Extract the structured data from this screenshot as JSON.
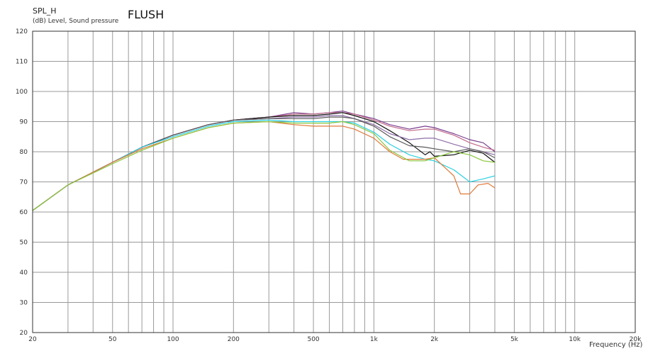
{
  "chart_data": {
    "type": "line",
    "title": "FLUSH",
    "ylabel": "SPL_H",
    "ylabel_unit": "(dB)  Level, Sound pressure",
    "xlabel": "Frequency  (Hz)",
    "xscale": "log",
    "xlim": [
      20,
      20000
    ],
    "ylim": [
      20,
      120
    ],
    "grid": true,
    "yticks": [
      20,
      30,
      40,
      50,
      60,
      70,
      80,
      90,
      100,
      110,
      120
    ],
    "xticks": [
      {
        "value": 20,
        "label": "20"
      },
      {
        "value": 50,
        "label": "50"
      },
      {
        "value": 100,
        "label": "100"
      },
      {
        "value": 200,
        "label": "200"
      },
      {
        "value": 500,
        "label": "500"
      },
      {
        "value": 1000,
        "label": "1k"
      },
      {
        "value": 2000,
        "label": "2k"
      },
      {
        "value": 5000,
        "label": "5k"
      },
      {
        "value": 10000,
        "label": "10k"
      },
      {
        "value": 20000,
        "label": "20k"
      }
    ],
    "series": [
      {
        "color": "#7a3f8f",
        "x": [
          20,
          30,
          50,
          70,
          100,
          150,
          200,
          300,
          400,
          500,
          600,
          700,
          800,
          1000,
          1200,
          1500,
          1800,
          2000,
          2500,
          3000,
          3500,
          4000
        ],
        "values": [
          60.5,
          69,
          76.5,
          81.5,
          85.5,
          89,
          90.5,
          91.5,
          93,
          92.5,
          93,
          93.5,
          92.5,
          91,
          89,
          87.5,
          88.5,
          88,
          86,
          84,
          83,
          80
        ]
      },
      {
        "color": "#c06a8a",
        "x": [
          20,
          30,
          50,
          70,
          100,
          150,
          200,
          300,
          400,
          500,
          600,
          700,
          800,
          1000,
          1200,
          1500,
          1800,
          2000,
          2500,
          3000,
          3500,
          4000
        ],
        "values": [
          60.5,
          69,
          76.5,
          81.5,
          85.5,
          89,
          90.5,
          91.5,
          92.5,
          92.5,
          93,
          93,
          92.5,
          90.5,
          88.5,
          87,
          87.5,
          87.5,
          85.5,
          83,
          81.5,
          80.5
        ]
      },
      {
        "color": "#111111",
        "x": [
          20,
          30,
          50,
          70,
          100,
          150,
          200,
          300,
          400,
          500,
          600,
          700,
          800,
          1000,
          1200,
          1500,
          1800,
          1900,
          2000,
          2500,
          3000,
          3500,
          4000
        ],
        "values": [
          60.5,
          69,
          76.5,
          81.5,
          85.5,
          89,
          90.5,
          91.5,
          92,
          92,
          92.5,
          93,
          92,
          90,
          87,
          83,
          79,
          80,
          78.5,
          79,
          80.5,
          79.5,
          76.5
        ]
      },
      {
        "color": "#8e6fa8",
        "x": [
          20,
          30,
          50,
          70,
          100,
          150,
          200,
          300,
          400,
          500,
          600,
          700,
          800,
          1000,
          1200,
          1500,
          1800,
          2000,
          2500,
          3000,
          3500,
          4000
        ],
        "values": [
          60.5,
          69,
          76.5,
          81.5,
          85.5,
          89,
          90.5,
          91,
          91.5,
          91.5,
          92,
          92,
          91,
          89,
          86,
          84,
          84.5,
          84.5,
          82.5,
          81,
          80,
          79
        ]
      },
      {
        "color": "#5a5a5a",
        "x": [
          20,
          30,
          50,
          70,
          100,
          150,
          200,
          300,
          400,
          500,
          600,
          700,
          800,
          1000,
          1200,
          1500,
          1800,
          2000,
          2500,
          3000,
          3500,
          4000
        ],
        "values": [
          60.5,
          69,
          76.5,
          81.5,
          85.5,
          89,
          90.5,
          91,
          91,
          91,
          91.5,
          91.5,
          91,
          88.5,
          85,
          82,
          81.5,
          81,
          80,
          81,
          80,
          78
        ]
      },
      {
        "color": "#2ad0e0",
        "x": [
          20,
          30,
          50,
          70,
          100,
          150,
          200,
          300,
          400,
          500,
          600,
          700,
          800,
          1000,
          1200,
          1500,
          1800,
          2000,
          2500,
          3000,
          3500,
          4000
        ],
        "values": [
          60.5,
          69,
          76.5,
          81.5,
          85,
          88.5,
          90,
          90.5,
          90,
          90,
          90,
          90,
          89.5,
          86.5,
          82.5,
          79,
          77.5,
          77,
          74,
          70,
          71,
          72
        ]
      },
      {
        "color": "#e07a3a",
        "x": [
          20,
          30,
          50,
          70,
          100,
          150,
          200,
          300,
          400,
          500,
          600,
          700,
          800,
          1000,
          1200,
          1400,
          1800,
          2000,
          2500,
          2700,
          3000,
          3300,
          3700,
          4000
        ],
        "values": [
          60.5,
          69,
          76.5,
          81,
          84.5,
          88,
          89.5,
          90,
          89,
          88.5,
          88.5,
          88.5,
          87.5,
          84.5,
          80,
          77.5,
          77.5,
          78,
          72,
          66,
          66,
          69,
          69.5,
          68
        ]
      },
      {
        "color": "#8cc63e",
        "x": [
          20,
          30,
          50,
          70,
          100,
          150,
          200,
          300,
          400,
          500,
          600,
          700,
          800,
          1000,
          1200,
          1500,
          1800,
          2000,
          2500,
          3000,
          3500,
          4000
        ],
        "values": [
          60.5,
          69,
          76,
          80.5,
          84.5,
          88,
          89.5,
          90,
          89.5,
          89.5,
          89.5,
          90,
          89,
          86,
          80.5,
          77,
          77,
          78,
          80,
          79,
          77,
          76.5
        ]
      }
    ]
  }
}
